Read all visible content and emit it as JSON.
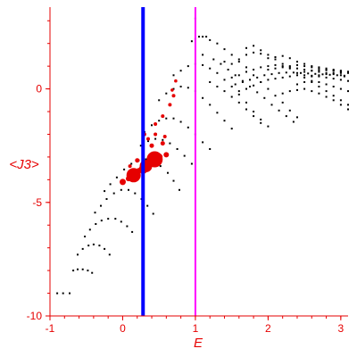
{
  "chart_data": {
    "type": "scatter",
    "title": "",
    "xlabel": "E",
    "ylabel": "<J3>",
    "xlim": [
      -1,
      3.1
    ],
    "ylim": [
      -10,
      3.6
    ],
    "x_ticks": [
      -1,
      0,
      1,
      2,
      3
    ],
    "y_ticks": [
      0,
      -5,
      -10
    ],
    "grid": false,
    "axis_color": "#e60000",
    "vertical_lines": [
      {
        "x": 0.28,
        "color": "#0000ff"
      },
      {
        "x": 1.0,
        "color": "#ff00ff"
      }
    ],
    "series": [
      {
        "color": "#000000",
        "marker": "dot",
        "points": [
          [
            -0.9,
            -9.0
          ],
          [
            -0.82,
            -9.0
          ],
          [
            -0.73,
            -9.0
          ],
          [
            -0.68,
            -8.0
          ],
          [
            -0.62,
            -7.95
          ],
          [
            -0.55,
            -7.95
          ],
          [
            -0.48,
            -8.0
          ],
          [
            -0.42,
            -8.1
          ],
          [
            -0.62,
            -7.3
          ],
          [
            -0.55,
            -7.05
          ],
          [
            -0.47,
            -6.9
          ],
          [
            -0.4,
            -6.85
          ],
          [
            -0.32,
            -6.9
          ],
          [
            -0.25,
            -7.05
          ],
          [
            -0.18,
            -7.3
          ],
          [
            -0.52,
            -6.5
          ],
          [
            -0.45,
            -6.2
          ],
          [
            -0.37,
            -5.95
          ],
          [
            -0.29,
            -5.8
          ],
          [
            -0.2,
            -5.72
          ],
          [
            -0.1,
            -5.72
          ],
          [
            -0.02,
            -5.85
          ],
          [
            0.06,
            -6.05
          ],
          [
            0.13,
            -6.3
          ],
          [
            -0.38,
            -5.45
          ],
          [
            -0.3,
            -5.15
          ],
          [
            -0.22,
            -4.85
          ],
          [
            -0.12,
            -4.6
          ],
          [
            -0.02,
            -4.45
          ],
          [
            0.08,
            -4.45
          ],
          [
            0.17,
            -4.6
          ],
          [
            0.26,
            -4.85
          ],
          [
            0.34,
            -5.15
          ],
          [
            0.42,
            -5.5
          ],
          [
            -0.25,
            -4.5
          ],
          [
            -0.17,
            -4.2
          ],
          [
            -0.08,
            -3.9
          ],
          [
            0.02,
            -3.55
          ],
          [
            0.12,
            -3.3
          ],
          [
            0.22,
            -3.15
          ],
          [
            0.32,
            -3.1
          ],
          [
            0.42,
            -3.2
          ],
          [
            0.52,
            -3.4
          ],
          [
            0.62,
            -3.7
          ],
          [
            0.7,
            -4.05
          ],
          [
            0.78,
            -4.45
          ],
          [
            0.25,
            -2.5
          ],
          [
            0.35,
            -2.3
          ],
          [
            0.45,
            -2.2
          ],
          [
            0.55,
            -2.25
          ],
          [
            0.65,
            -2.4
          ],
          [
            0.75,
            -2.65
          ],
          [
            0.85,
            -2.95
          ],
          [
            0.95,
            -3.3
          ],
          [
            0.3,
            -1.9
          ],
          [
            0.4,
            -1.6
          ],
          [
            0.5,
            -1.4
          ],
          [
            0.6,
            -1.3
          ],
          [
            0.7,
            -1.3
          ],
          [
            0.8,
            -1.45
          ],
          [
            0.9,
            -1.7
          ],
          [
            1.0,
            -2.0
          ],
          [
            1.1,
            -2.35
          ],
          [
            1.2,
            -2.65
          ],
          [
            0.5,
            -0.5
          ],
          [
            0.6,
            -0.2
          ],
          [
            0.7,
            0.0
          ],
          [
            0.8,
            0.1
          ],
          [
            0.9,
            0.05
          ],
          [
            1.0,
            -0.1
          ],
          [
            1.1,
            -0.4
          ],
          [
            1.2,
            -0.7
          ],
          [
            1.3,
            -1.05
          ],
          [
            1.4,
            -1.4
          ],
          [
            1.5,
            -1.75
          ],
          [
            0.7,
            0.6
          ],
          [
            0.8,
            0.8
          ],
          [
            0.9,
            1.0
          ],
          [
            1.0,
            1.1
          ],
          [
            1.1,
            1.05
          ],
          [
            1.2,
            0.9
          ],
          [
            1.3,
            0.7
          ],
          [
            1.4,
            0.4
          ],
          [
            1.5,
            0.1
          ],
          [
            1.6,
            -0.25
          ],
          [
            1.7,
            -0.6
          ],
          [
            1.8,
            -1.0
          ],
          [
            1.9,
            -1.35
          ],
          [
            2.0,
            -1.65
          ],
          [
            0.95,
            2.1
          ],
          [
            1.0,
            2.2
          ],
          [
            1.05,
            2.3
          ],
          [
            1.1,
            2.3
          ],
          [
            1.15,
            2.3
          ],
          [
            1.2,
            2.15
          ],
          [
            1.3,
            2.0
          ],
          [
            1.4,
            1.75
          ],
          [
            1.5,
            1.5
          ],
          [
            1.6,
            1.2
          ],
          [
            1.7,
            0.95
          ],
          [
            1.8,
            0.6
          ],
          [
            1.9,
            0.3
          ],
          [
            2.0,
            0.0
          ],
          [
            2.1,
            -0.3
          ],
          [
            2.2,
            -0.6
          ],
          [
            2.3,
            -0.95
          ],
          [
            2.4,
            -1.25
          ],
          [
            1.0,
            3.1
          ],
          [
            1.2,
            0.3
          ],
          [
            1.3,
            0.1
          ],
          [
            1.4,
            -0.1
          ],
          [
            1.5,
            -0.35
          ],
          [
            1.6,
            -0.6
          ],
          [
            1.7,
            -0.9
          ],
          [
            1.8,
            -1.2
          ],
          [
            1.9,
            -1.5
          ],
          [
            1.1,
            1.5
          ],
          [
            1.25,
            1.3
          ],
          [
            1.35,
            1.1
          ],
          [
            1.45,
            0.85
          ],
          [
            1.55,
            0.6
          ],
          [
            1.65,
            0.35
          ],
          [
            1.75,
            0.1
          ],
          [
            1.85,
            -0.15
          ],
          [
            1.95,
            -0.4
          ],
          [
            2.05,
            -0.7
          ],
          [
            2.15,
            -0.95
          ],
          [
            2.25,
            -1.2
          ],
          [
            2.35,
            -1.45
          ],
          [
            1.4,
            1.2
          ],
          [
            1.5,
            1.1
          ],
          [
            1.6,
            1.3
          ],
          [
            1.7,
            1.5
          ],
          [
            1.8,
            1.6
          ],
          [
            1.9,
            1.7
          ],
          [
            2.0,
            1.5
          ],
          [
            2.1,
            1.3
          ],
          [
            2.2,
            1.1
          ],
          [
            2.3,
            0.9
          ],
          [
            2.4,
            0.7
          ],
          [
            2.5,
            0.5
          ],
          [
            2.6,
            0.3
          ],
          [
            2.7,
            0.1
          ],
          [
            2.8,
            -0.1
          ],
          [
            2.9,
            -0.3
          ],
          [
            3.0,
            -0.5
          ],
          [
            3.1,
            -0.7
          ],
          [
            1.5,
            0.5
          ],
          [
            1.6,
            0.6
          ],
          [
            1.7,
            0.75
          ],
          [
            1.8,
            0.85
          ],
          [
            1.9,
            0.95
          ],
          [
            2.0,
            1.0
          ],
          [
            2.1,
            1.05
          ],
          [
            2.2,
            1.0
          ],
          [
            2.3,
            0.95
          ],
          [
            2.4,
            0.9
          ],
          [
            2.5,
            0.85
          ],
          [
            2.6,
            0.8
          ],
          [
            2.7,
            0.75
          ],
          [
            2.8,
            0.7
          ],
          [
            2.9,
            0.65
          ],
          [
            3.0,
            0.6
          ],
          [
            3.05,
            0.55
          ],
          [
            1.55,
            0.2
          ],
          [
            1.65,
            0.3
          ],
          [
            1.75,
            0.4
          ],
          [
            1.85,
            0.5
          ],
          [
            1.95,
            0.6
          ],
          [
            2.05,
            0.65
          ],
          [
            2.15,
            0.7
          ],
          [
            2.25,
            0.72
          ],
          [
            2.35,
            0.72
          ],
          [
            2.45,
            0.7
          ],
          [
            2.55,
            0.68
          ],
          [
            2.65,
            0.66
          ],
          [
            2.75,
            0.64
          ],
          [
            2.85,
            0.62
          ],
          [
            2.95,
            0.6
          ],
          [
            3.05,
            0.58
          ],
          [
            1.6,
            -0.1
          ],
          [
            1.7,
            0.0
          ],
          [
            1.8,
            0.15
          ],
          [
            1.9,
            0.3
          ],
          [
            2.0,
            0.4
          ],
          [
            2.1,
            0.45
          ],
          [
            2.2,
            0.5
          ],
          [
            2.3,
            0.55
          ],
          [
            2.4,
            0.6
          ],
          [
            2.5,
            0.6
          ],
          [
            2.6,
            0.58
          ],
          [
            2.7,
            0.55
          ],
          [
            2.8,
            0.5
          ],
          [
            2.9,
            0.45
          ],
          [
            3.0,
            0.4
          ],
          [
            3.1,
            0.35
          ],
          [
            1.7,
            1.8
          ],
          [
            1.8,
            1.9
          ],
          [
            1.9,
            1.55
          ],
          [
            2.0,
            1.35
          ],
          [
            2.1,
            1.4
          ],
          [
            2.2,
            1.45
          ],
          [
            2.3,
            1.35
          ],
          [
            2.4,
            1.2
          ],
          [
            2.5,
            1.1
          ],
          [
            2.6,
            1.0
          ],
          [
            2.7,
            0.95
          ],
          [
            2.8,
            0.9
          ],
          [
            2.9,
            0.85
          ],
          [
            3.0,
            0.8
          ],
          [
            3.1,
            0.75
          ],
          [
            2.0,
            0.85
          ],
          [
            2.1,
            0.9
          ],
          [
            2.2,
            0.95
          ],
          [
            2.3,
            1.0
          ],
          [
            2.4,
            1.05
          ],
          [
            2.5,
            1.0
          ],
          [
            2.6,
            0.95
          ],
          [
            2.7,
            0.9
          ],
          [
            2.8,
            0.85
          ],
          [
            2.9,
            0.8
          ],
          [
            3.0,
            0.75
          ],
          [
            2.2,
            -0.2
          ],
          [
            2.3,
            -0.1
          ],
          [
            2.4,
            -0.05
          ],
          [
            2.5,
            0.0
          ],
          [
            2.6,
            -0.1
          ],
          [
            2.7,
            -0.2
          ],
          [
            2.8,
            -0.35
          ],
          [
            2.9,
            -0.5
          ],
          [
            3.0,
            -0.7
          ],
          [
            3.1,
            -0.9
          ],
          [
            2.4,
            0.2
          ],
          [
            2.5,
            0.3
          ],
          [
            2.6,
            0.35
          ],
          [
            2.7,
            0.3
          ],
          [
            2.8,
            0.2
          ],
          [
            2.9,
            0.1
          ],
          [
            3.0,
            0.0
          ],
          [
            3.1,
            -0.1
          ],
          [
            2.5,
            0.75
          ],
          [
            2.6,
            0.8
          ],
          [
            2.7,
            0.82
          ],
          [
            2.8,
            0.82
          ],
          [
            2.9,
            0.8
          ],
          [
            3.0,
            0.78
          ],
          [
            3.1,
            0.76
          ],
          [
            2.6,
            0.55
          ],
          [
            2.7,
            0.6
          ],
          [
            2.8,
            0.65
          ],
          [
            2.9,
            0.7
          ],
          [
            3.0,
            0.7
          ],
          [
            3.1,
            0.7
          ]
        ]
      },
      {
        "color": "#e60000",
        "marker": "circle",
        "points": [
          [
            0.15,
            -3.8,
            8
          ],
          [
            0.44,
            -3.1,
            9
          ],
          [
            0.32,
            -3.4,
            7
          ],
          [
            0.28,
            -3.55,
            5
          ],
          [
            0.5,
            -3.0,
            4
          ],
          [
            0.6,
            -2.9,
            3
          ],
          [
            0.0,
            -4.1,
            3.5
          ],
          [
            0.08,
            -3.95,
            3
          ],
          [
            0.22,
            -3.6,
            3
          ],
          [
            0.36,
            -3.25,
            3.5
          ],
          [
            0.4,
            -2.5,
            2.5
          ],
          [
            0.55,
            -2.4,
            2.5
          ],
          [
            0.3,
            -2.0,
            2
          ],
          [
            0.45,
            -1.55,
            2
          ],
          [
            0.55,
            -1.2,
            2
          ],
          [
            0.65,
            -0.7,
            2
          ],
          [
            0.7,
            -0.3,
            2
          ],
          [
            0.68,
            -0.05,
            1.8
          ],
          [
            0.73,
            0.35,
            1.8
          ],
          [
            0.45,
            -2.0,
            2
          ],
          [
            0.2,
            -3.15,
            2.5
          ],
          [
            0.1,
            -3.4,
            2
          ],
          [
            0.35,
            -2.2,
            2
          ],
          [
            0.58,
            -2.1,
            2
          ]
        ]
      }
    ]
  }
}
